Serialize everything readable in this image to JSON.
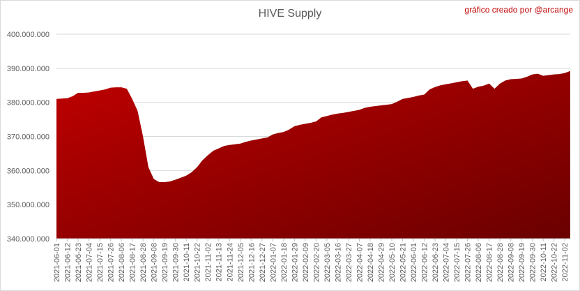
{
  "chart_data": {
    "type": "area",
    "title": "HIVE Supply",
    "annotation": "gráfico creado por @arcange",
    "categories": [
      "2021-06-01",
      null,
      "2021-06-12",
      null,
      "2021-06-23",
      null,
      "2021-07-04",
      null,
      "2021-07-15",
      null,
      "2021-07-26",
      null,
      "2021-08-06",
      null,
      "2021-08-17",
      null,
      "2021-08-28",
      null,
      "2021-09-08",
      null,
      "2021-09-19",
      null,
      "2021-09-30",
      null,
      "2021-10-11",
      null,
      "2021-10-22",
      null,
      "2021-11-02",
      null,
      "2021-11-13",
      null,
      "2021-11-24",
      null,
      "2021-12-05",
      null,
      "2021-12-16",
      null,
      "2021-12-27",
      null,
      "2022-01-07",
      null,
      "2022-01-18",
      null,
      "2022-01-29",
      null,
      "2022-02-09",
      null,
      "2022-02-20",
      null,
      "2022-03-05",
      null,
      "2022-03-16",
      null,
      "2022-03-27",
      null,
      "2022-04-07",
      null,
      "2022-04-18",
      null,
      "2022-04-29",
      null,
      "2022-05-10",
      null,
      "2022-05-21",
      null,
      "2022-06-01",
      null,
      "2022-06-12",
      null,
      "2022-06-23",
      null,
      "2022-07-04",
      null,
      "2022-07-15",
      null,
      "2022-07-26",
      null,
      "2022-08-06",
      null,
      "2022-08-17",
      null,
      "2022-08-28",
      null,
      "2022-09-08",
      null,
      "2022-09-19",
      null,
      "2022-09-30",
      null,
      "2022-10-11",
      null,
      "2022-10-22",
      null,
      "2022-11-02",
      null
    ],
    "values": [
      381000000,
      381100000,
      381200000,
      381800000,
      382800000,
      382800000,
      382900000,
      383200000,
      383500000,
      383800000,
      384300000,
      384400000,
      384400000,
      384000000,
      381000000,
      377500000,
      370000000,
      361000000,
      357500000,
      356600000,
      356600000,
      356800000,
      357300000,
      357900000,
      358500000,
      359500000,
      361000000,
      363000000,
      364500000,
      365800000,
      366500000,
      367200000,
      367500000,
      367700000,
      367900000,
      368400000,
      368800000,
      369100000,
      369400000,
      369700000,
      370600000,
      371000000,
      371300000,
      372000000,
      373000000,
      373400000,
      373700000,
      374000000,
      374400000,
      375600000,
      376000000,
      376400000,
      376700000,
      376900000,
      377200000,
      377500000,
      377800000,
      378400000,
      378700000,
      378900000,
      379100000,
      379300000,
      379500000,
      380200000,
      381000000,
      381300000,
      381600000,
      382000000,
      382300000,
      383800000,
      384500000,
      385000000,
      385300000,
      385600000,
      385900000,
      386200000,
      386400000,
      384000000,
      384600000,
      384900000,
      385500000,
      384000000,
      385500000,
      386400000,
      386800000,
      386900000,
      387000000,
      387500000,
      388200000,
      388400000,
      387800000,
      388000000,
      388200000,
      388300000,
      388600000,
      389200000
    ],
    "ylim": [
      340000000,
      400000000
    ],
    "yticks": [
      {
        "value": 340000000,
        "label": "340.000.000"
      },
      {
        "value": 350000000,
        "label": "350.000.000"
      },
      {
        "value": 360000000,
        "label": "360.000.000"
      },
      {
        "value": 370000000,
        "label": "370.000.000"
      },
      {
        "value": 380000000,
        "label": "380.000.000"
      },
      {
        "value": 390000000,
        "label": "390.000.000"
      },
      {
        "value": 400000000,
        "label": "400.000.000"
      }
    ],
    "grid": true,
    "color": "#c00000",
    "color_dark": "#6a0000",
    "annotation_color": "#c00000"
  }
}
